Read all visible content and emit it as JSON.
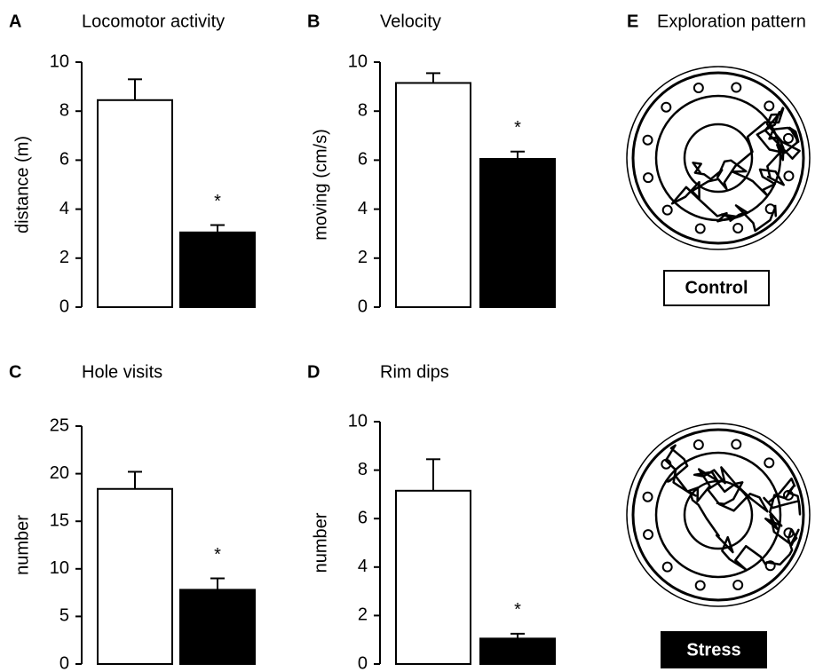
{
  "chart_data": [
    {
      "type": "bar",
      "panel": "A",
      "title": "Locomotor activity",
      "y_label": "distance (m)",
      "categories": [
        null,
        null
      ],
      "values": [
        8.45,
        3.05
      ],
      "errors": [
        0.85,
        0.3
      ],
      "significance": [
        null,
        "*"
      ],
      "colors": [
        "#ffffff",
        "#000000"
      ],
      "ylim": [
        0,
        10
      ],
      "yticks": [
        0,
        2,
        4,
        6,
        8,
        10
      ]
    },
    {
      "type": "bar",
      "panel": "B",
      "title": "Velocity",
      "y_label": "moving (cm/s)",
      "categories": [
        null,
        null
      ],
      "values": [
        9.15,
        6.05
      ],
      "errors": [
        0.4,
        0.3
      ],
      "significance": [
        null,
        "*"
      ],
      "colors": [
        "#ffffff",
        "#000000"
      ],
      "ylim": [
        0,
        10
      ],
      "yticks": [
        0,
        2,
        4,
        6,
        8,
        10
      ]
    },
    {
      "type": "bar",
      "panel": "C",
      "title": "Hole visits",
      "y_label": "number",
      "categories": [
        null,
        null
      ],
      "values": [
        18.4,
        7.8
      ],
      "errors": [
        1.8,
        1.2
      ],
      "significance": [
        null,
        "*"
      ],
      "colors": [
        "#ffffff",
        "#000000"
      ],
      "ylim": [
        0,
        25
      ],
      "yticks": [
        0,
        5,
        10,
        15,
        20,
        25
      ]
    },
    {
      "type": "bar",
      "panel": "D",
      "title": "Rim dips",
      "y_label": "number",
      "categories": [
        null,
        null
      ],
      "values": [
        7.15,
        1.05
      ],
      "errors": [
        1.3,
        0.2
      ],
      "significance": [
        null,
        "*"
      ],
      "colors": [
        "#ffffff",
        "#000000"
      ],
      "ylim": [
        0,
        10
      ],
      "yticks": [
        0,
        2,
        4,
        6,
        8,
        10
      ]
    }
  ],
  "exploration": {
    "panel": "E",
    "title": "Exploration pattern",
    "labels": [
      "Control",
      "Stress"
    ]
  }
}
